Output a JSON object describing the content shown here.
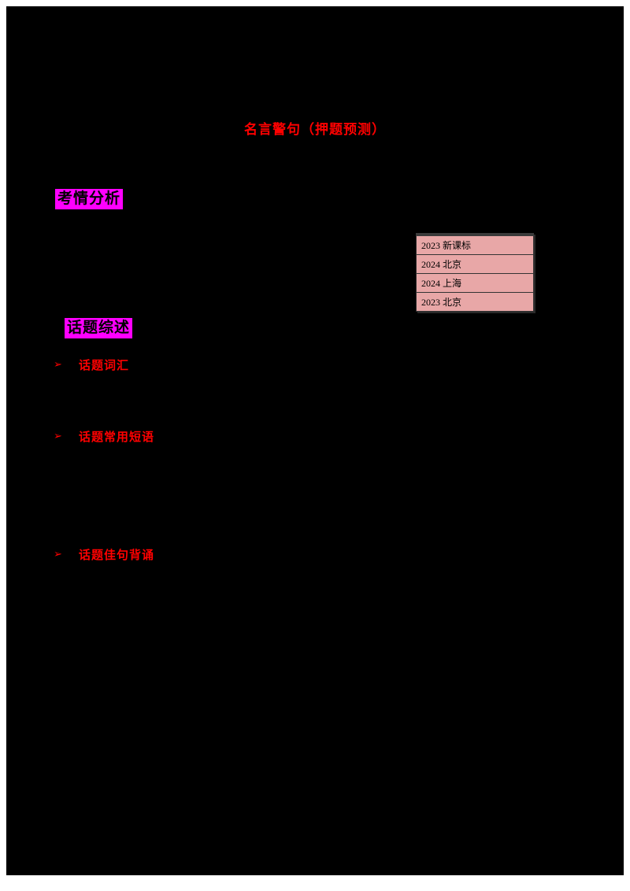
{
  "page": {
    "title": "名言警句（押题预测）",
    "background_color": "#000000",
    "frame_color": "#ffffff",
    "title_color": "#ff0000"
  },
  "sections": {
    "exam_analysis": {
      "label": "考情分析",
      "highlight_color": "#ff00ff"
    },
    "topic_overview": {
      "label": "话题综述",
      "highlight_color": "#ff00ff"
    }
  },
  "exam_table": {
    "background_color": "#e8a7a7",
    "rows": [
      {
        "label": "2023 新课标"
      },
      {
        "label": "2024 北京"
      },
      {
        "label": "2024 上海"
      },
      {
        "label": "2023 北京"
      }
    ]
  },
  "bullets": [
    {
      "marker": "➢",
      "label": "话题词汇"
    },
    {
      "marker": "➢",
      "label": "话题常用短语"
    },
    {
      "marker": "➢",
      "label": "话题佳句背诵"
    }
  ]
}
